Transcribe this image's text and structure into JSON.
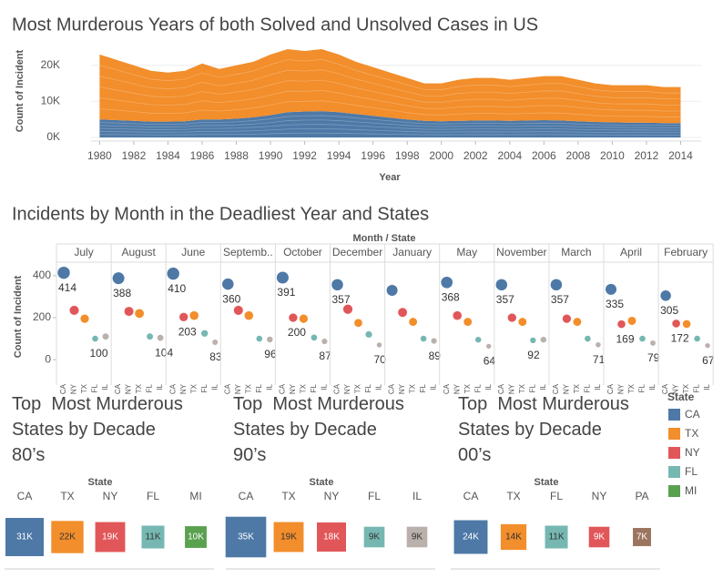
{
  "chart_data": [
    {
      "type": "area",
      "title": "Most Murderous Years of both Solved and Unsolved Cases in US",
      "x_label": "Year",
      "y_label": "Count of Incident",
      "stacked": true,
      "grid": true,
      "x": [
        1980,
        1981,
        1982,
        1983,
        1984,
        1985,
        1986,
        1987,
        1988,
        1989,
        1990,
        1991,
        1992,
        1993,
        1994,
        1995,
        1996,
        1997,
        1998,
        1999,
        2000,
        2001,
        2002,
        2003,
        2004,
        2005,
        2006,
        2007,
        2008,
        2009,
        2010,
        2011,
        2012,
        2013,
        2014
      ],
      "series": [
        {
          "color": "#4e79a7",
          "values": [
            5000,
            4800,
            4600,
            4400,
            4400,
            4500,
            5000,
            5000,
            5200,
            5600,
            6200,
            7000,
            7200,
            7300,
            7000,
            6500,
            6000,
            5500,
            5000,
            4600,
            4500,
            4600,
            4700,
            4700,
            4600,
            4700,
            4800,
            4700,
            4500,
            4300,
            4200,
            4100,
            4100,
            4000,
            4000
          ]
        },
        {
          "color": "#f28e2b",
          "values": [
            18000,
            16700,
            15400,
            14100,
            13600,
            14000,
            15500,
            14000,
            14800,
            15400,
            16800,
            17500,
            16800,
            17200,
            16000,
            14500,
            13500,
            12500,
            11500,
            10400,
            10500,
            11400,
            11800,
            11800,
            11400,
            11800,
            12200,
            12300,
            11500,
            10700,
            10300,
            10400,
            10400,
            10000,
            10000
          ]
        }
      ],
      "xlim": [
        1979.5,
        2015.2
      ],
      "xticks": [
        1980,
        1982,
        1984,
        1986,
        1988,
        1990,
        1992,
        1994,
        1996,
        1998,
        2000,
        2002,
        2004,
        2006,
        2008,
        2010,
        2012,
        2014
      ],
      "ylim": [
        -1000,
        25500
      ],
      "yticks": [
        {
          "value": 0,
          "label": "0K"
        },
        {
          "value": 10000,
          "label": "10K"
        },
        {
          "value": 20000,
          "label": "20K"
        }
      ]
    },
    {
      "type": "dot_panels",
      "title": "Incidents by Month in the Deadliest Year and States",
      "header": "Month / State",
      "y_label": "Count of Incident",
      "categories": [
        "CA",
        "NY",
        "TX",
        "FL",
        "IL"
      ],
      "colors": [
        "#4e79a7",
        "#e15759",
        "#f28e2b",
        "#76b7b2",
        "#bab0ac"
      ],
      "ylim": [
        -43,
        456
      ],
      "yticks": [
        0,
        200,
        400
      ],
      "panels": [
        {
          "name": "July",
          "values": [
            414,
            235,
            195,
            100,
            110
          ],
          "value_labels": [
            "414",
            null,
            null,
            "100",
            null
          ]
        },
        {
          "name": "August",
          "values": [
            388,
            230,
            220,
            110,
            104
          ],
          "value_labels": [
            "388",
            null,
            null,
            null,
            "104"
          ]
        },
        {
          "name": "June",
          "values": [
            410,
            203,
            210,
            125,
            83
          ],
          "value_labels": [
            "410",
            "203",
            null,
            null,
            "83"
          ]
        },
        {
          "name": "Septemb..",
          "values": [
            360,
            235,
            210,
            100,
            96
          ],
          "value_labels": [
            "360",
            null,
            null,
            null,
            "96"
          ]
        },
        {
          "name": "October",
          "values": [
            391,
            200,
            195,
            105,
            87
          ],
          "value_labels": [
            "391",
            "200",
            null,
            null,
            "87"
          ]
        },
        {
          "name": "December",
          "values": [
            357,
            240,
            175,
            120,
            70
          ],
          "value_labels": [
            "357",
            null,
            null,
            null,
            "70"
          ]
        },
        {
          "name": "January",
          "values": [
            330,
            225,
            180,
            100,
            89
          ],
          "value_labels": [
            null,
            null,
            null,
            null,
            "89"
          ]
        },
        {
          "name": "May",
          "values": [
            368,
            210,
            180,
            95,
            64
          ],
          "value_labels": [
            "368",
            null,
            null,
            null,
            "64"
          ]
        },
        {
          "name": "November",
          "values": [
            357,
            200,
            180,
            92,
            95
          ],
          "value_labels": [
            "357",
            null,
            null,
            "92",
            null
          ]
        },
        {
          "name": "March",
          "values": [
            357,
            195,
            180,
            100,
            71
          ],
          "value_labels": [
            "357",
            null,
            null,
            null,
            "71"
          ]
        },
        {
          "name": "April",
          "values": [
            335,
            169,
            185,
            100,
            79
          ],
          "value_labels": [
            "335",
            "169",
            null,
            null,
            "79"
          ]
        },
        {
          "name": "February",
          "values": [
            305,
            172,
            170,
            100,
            67
          ],
          "value_labels": [
            "305",
            "172",
            null,
            null,
            "67"
          ]
        }
      ]
    },
    {
      "type": "square",
      "title": "Top  Most Murderous States by Decade",
      "subtitle": "80’s",
      "header": "State",
      "categories": [
        "CA",
        "TX",
        "NY",
        "FL",
        "MI"
      ],
      "values": [
        31000,
        22000,
        19000,
        11000,
        10000
      ],
      "value_labels": [
        "31K",
        "22K",
        "19K",
        "11K",
        "10K"
      ],
      "colors": [
        "#4e79a7",
        "#f28e2b",
        "#e15759",
        "#76b7b2",
        "#59a14f"
      ]
    },
    {
      "type": "square",
      "title": "Top  Most Murderous States by Decade",
      "subtitle": "90’s",
      "header": "State",
      "categories": [
        "CA",
        "TX",
        "NY",
        "FL",
        "IL"
      ],
      "values": [
        35000,
        19000,
        18000,
        9000,
        9000
      ],
      "value_labels": [
        "35K",
        "19K",
        "18K",
        "9K",
        "9K"
      ],
      "colors": [
        "#4e79a7",
        "#f28e2b",
        "#e15759",
        "#76b7b2",
        "#bab0ac"
      ]
    },
    {
      "type": "square",
      "title": "Top  Most Murderous States by Decade",
      "subtitle": "00’s",
      "header": "State",
      "categories": [
        "CA",
        "TX",
        "FL",
        "NY",
        "PA"
      ],
      "values": [
        24000,
        14000,
        11000,
        9000,
        7000
      ],
      "value_labels": [
        "24K",
        "14K",
        "11K",
        "9K",
        "7K"
      ],
      "colors": [
        "#4e79a7",
        "#f28e2b",
        "#76b7b2",
        "#e15759",
        "#9c755f"
      ]
    }
  ],
  "legend": {
    "title": "State",
    "items": [
      {
        "name": "CA",
        "color": "#4e79a7"
      },
      {
        "name": "TX",
        "color": "#f28e2b"
      },
      {
        "name": "NY",
        "color": "#e15759"
      },
      {
        "name": "FL",
        "color": "#76b7b2"
      },
      {
        "name": "MI",
        "color": "#59a14f"
      }
    ]
  }
}
